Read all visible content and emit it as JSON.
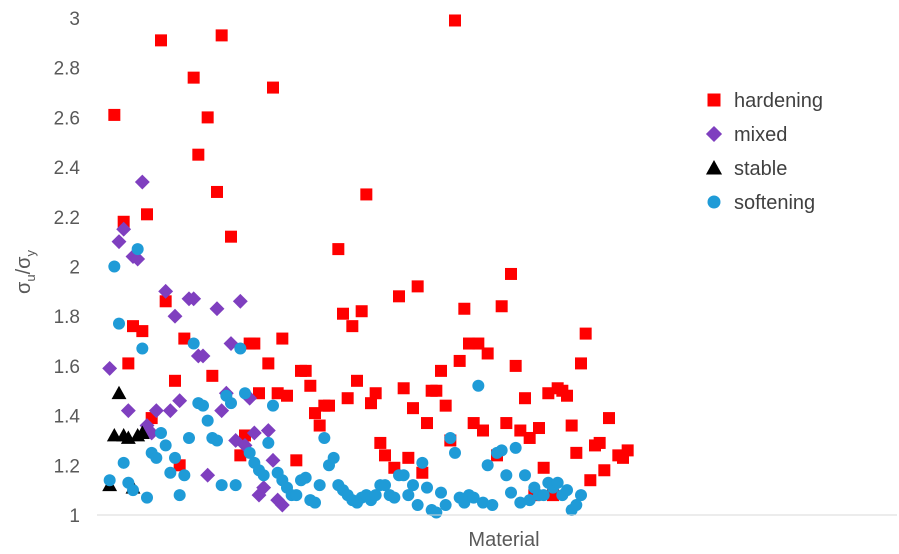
{
  "chart_data": {
    "type": "scatter",
    "title": "",
    "xlabel": "Material",
    "ylabel_main": "σ",
    "ylabel_num_sub": "u",
    "ylabel_slash": "/σ",
    "ylabel_den_sub": "y",
    "ylim": [
      1,
      3
    ],
    "xlim": [
      0,
      168
    ],
    "yticks": [
      "1",
      "1.2",
      "1.4",
      "1.6",
      "1.8",
      "2",
      "2.2",
      "2.4",
      "2.6",
      "2.8",
      "3"
    ],
    "grid": false,
    "legend_position": "top-right",
    "series": [
      {
        "name": "hardening",
        "marker": "square",
        "color": "#ff0000",
        "points": [
          [
            2,
            2.61
          ],
          [
            4,
            2.18
          ],
          [
            5,
            1.61
          ],
          [
            6,
            1.76
          ],
          [
            8,
            1.74
          ],
          [
            9,
            2.21
          ],
          [
            10,
            1.39
          ],
          [
            12,
            2.91
          ],
          [
            13,
            1.86
          ],
          [
            15,
            1.54
          ],
          [
            16,
            1.2
          ],
          [
            17,
            1.71
          ],
          [
            19,
            2.76
          ],
          [
            20,
            2.45
          ],
          [
            22,
            2.6
          ],
          [
            23,
            1.56
          ],
          [
            24,
            2.3
          ],
          [
            25,
            2.93
          ],
          [
            27,
            2.12
          ],
          [
            29,
            1.24
          ],
          [
            30,
            1.32
          ],
          [
            31,
            1.69
          ],
          [
            32,
            1.69
          ],
          [
            33,
            1.49
          ],
          [
            35,
            1.61
          ],
          [
            36,
            2.72
          ],
          [
            37,
            1.49
          ],
          [
            38,
            1.71
          ],
          [
            39,
            1.48
          ],
          [
            41,
            1.22
          ],
          [
            42,
            1.58
          ],
          [
            43,
            1.58
          ],
          [
            44,
            1.52
          ],
          [
            45,
            1.41
          ],
          [
            46,
            1.36
          ],
          [
            47,
            1.44
          ],
          [
            48,
            1.44
          ],
          [
            50,
            2.07
          ],
          [
            51,
            1.81
          ],
          [
            52,
            1.47
          ],
          [
            53,
            1.76
          ],
          [
            54,
            1.54
          ],
          [
            55,
            1.82
          ],
          [
            56,
            2.29
          ],
          [
            57,
            1.45
          ],
          [
            58,
            1.49
          ],
          [
            59,
            1.29
          ],
          [
            60,
            1.24
          ],
          [
            62,
            1.19
          ],
          [
            63,
            1.88
          ],
          [
            64,
            1.51
          ],
          [
            65,
            1.23
          ],
          [
            66,
            1.43
          ],
          [
            67,
            1.92
          ],
          [
            68,
            1.17
          ],
          [
            69,
            1.37
          ],
          [
            70,
            1.5
          ],
          [
            71,
            1.5
          ],
          [
            72,
            1.58
          ],
          [
            73,
            1.44
          ],
          [
            74,
            1.3
          ],
          [
            75,
            2.99
          ],
          [
            76,
            1.62
          ],
          [
            77,
            1.83
          ],
          [
            78,
            1.69
          ],
          [
            79,
            1.37
          ],
          [
            80,
            1.69
          ],
          [
            81,
            1.34
          ],
          [
            82,
            1.65
          ],
          [
            84,
            1.24
          ],
          [
            85,
            1.84
          ],
          [
            86,
            1.37
          ],
          [
            87,
            1.97
          ],
          [
            88,
            1.6
          ],
          [
            89,
            1.34
          ],
          [
            90,
            1.47
          ],
          [
            91,
            1.31
          ],
          [
            92,
            1.08
          ],
          [
            93,
            1.35
          ],
          [
            94,
            1.19
          ],
          [
            95,
            1.49
          ],
          [
            96,
            1.08
          ],
          [
            97,
            1.51
          ],
          [
            98,
            1.5
          ],
          [
            99,
            1.48
          ],
          [
            100,
            1.36
          ],
          [
            101,
            1.25
          ],
          [
            102,
            1.61
          ],
          [
            103,
            1.73
          ],
          [
            104,
            1.14
          ],
          [
            105,
            1.28
          ],
          [
            106,
            1.29
          ],
          [
            107,
            1.18
          ],
          [
            108,
            1.39
          ],
          [
            110,
            1.24
          ],
          [
            111,
            1.23
          ],
          [
            112,
            1.26
          ]
        ]
      },
      {
        "name": "mixed",
        "marker": "diamond",
        "color": "#7f3fbf",
        "points": [
          [
            1,
            1.59
          ],
          [
            3,
            2.1
          ],
          [
            4,
            2.15
          ],
          [
            5,
            1.42
          ],
          [
            6,
            2.04
          ],
          [
            7,
            2.03
          ],
          [
            8,
            2.34
          ],
          [
            9,
            1.36
          ],
          [
            10,
            1.33
          ],
          [
            11,
            1.42
          ],
          [
            13,
            1.9
          ],
          [
            14,
            1.42
          ],
          [
            15,
            1.8
          ],
          [
            16,
            1.46
          ],
          [
            18,
            1.87
          ],
          [
            19,
            1.87
          ],
          [
            20,
            1.64
          ],
          [
            21,
            1.64
          ],
          [
            22,
            1.16
          ],
          [
            24,
            1.83
          ],
          [
            25,
            1.42
          ],
          [
            26,
            1.49
          ],
          [
            27,
            1.69
          ],
          [
            28,
            1.3
          ],
          [
            29,
            1.86
          ],
          [
            30,
            1.28
          ],
          [
            31,
            1.47
          ],
          [
            32,
            1.33
          ],
          [
            33,
            1.08
          ],
          [
            34,
            1.11
          ],
          [
            35,
            1.34
          ],
          [
            36,
            1.22
          ],
          [
            37,
            1.06
          ],
          [
            38,
            1.04
          ]
        ]
      },
      {
        "name": "stable",
        "marker": "triangle",
        "color": "#000000",
        "points": [
          [
            1,
            1.12
          ],
          [
            2,
            1.32
          ],
          [
            3,
            1.49
          ],
          [
            4,
            1.32
          ],
          [
            5,
            1.31
          ],
          [
            6,
            1.11
          ],
          [
            7,
            1.32
          ],
          [
            8,
            1.33
          ]
        ]
      },
      {
        "name": "softening",
        "marker": "circle",
        "color": "#1f9bd7",
        "points": [
          [
            1,
            1.14
          ],
          [
            2,
            2.0
          ],
          [
            3,
            1.77
          ],
          [
            4,
            1.21
          ],
          [
            5,
            1.13
          ],
          [
            6,
            1.1
          ],
          [
            7,
            2.07
          ],
          [
            8,
            1.67
          ],
          [
            9,
            1.07
          ],
          [
            10,
            1.25
          ],
          [
            11,
            1.23
          ],
          [
            12,
            1.33
          ],
          [
            13,
            1.28
          ],
          [
            14,
            1.17
          ],
          [
            15,
            1.23
          ],
          [
            16,
            1.08
          ],
          [
            17,
            1.16
          ],
          [
            18,
            1.31
          ],
          [
            19,
            1.69
          ],
          [
            20,
            1.45
          ],
          [
            21,
            1.44
          ],
          [
            22,
            1.38
          ],
          [
            23,
            1.31
          ],
          [
            24,
            1.3
          ],
          [
            25,
            1.12
          ],
          [
            26,
            1.48
          ],
          [
            27,
            1.45
          ],
          [
            28,
            1.12
          ],
          [
            29,
            1.67
          ],
          [
            30,
            1.49
          ],
          [
            31,
            1.25
          ],
          [
            32,
            1.21
          ],
          [
            33,
            1.18
          ],
          [
            34,
            1.16
          ],
          [
            35,
            1.29
          ],
          [
            36,
            1.44
          ],
          [
            37,
            1.17
          ],
          [
            38,
            1.14
          ],
          [
            39,
            1.11
          ],
          [
            40,
            1.08
          ],
          [
            41,
            1.08
          ],
          [
            42,
            1.14
          ],
          [
            43,
            1.15
          ],
          [
            44,
            1.06
          ],
          [
            45,
            1.05
          ],
          [
            46,
            1.12
          ],
          [
            47,
            1.31
          ],
          [
            48,
            1.2
          ],
          [
            49,
            1.23
          ],
          [
            50,
            1.12
          ],
          [
            51,
            1.1
          ],
          [
            52,
            1.08
          ],
          [
            53,
            1.06
          ],
          [
            54,
            1.05
          ],
          [
            55,
            1.07
          ],
          [
            56,
            1.08
          ],
          [
            57,
            1.06
          ],
          [
            58,
            1.08
          ],
          [
            59,
            1.12
          ],
          [
            60,
            1.12
          ],
          [
            61,
            1.08
          ],
          [
            62,
            1.07
          ],
          [
            63,
            1.16
          ],
          [
            64,
            1.16
          ],
          [
            65,
            1.08
          ],
          [
            66,
            1.12
          ],
          [
            67,
            1.04
          ],
          [
            68,
            1.21
          ],
          [
            69,
            1.11
          ],
          [
            70,
            1.02
          ],
          [
            71,
            1.01
          ],
          [
            72,
            1.09
          ],
          [
            73,
            1.04
          ],
          [
            74,
            1.31
          ],
          [
            75,
            1.25
          ],
          [
            76,
            1.07
          ],
          [
            77,
            1.05
          ],
          [
            78,
            1.08
          ],
          [
            79,
            1.07
          ],
          [
            80,
            1.52
          ],
          [
            81,
            1.05
          ],
          [
            82,
            1.2
          ],
          [
            83,
            1.04
          ],
          [
            84,
            1.25
          ],
          [
            85,
            1.26
          ],
          [
            86,
            1.16
          ],
          [
            87,
            1.09
          ],
          [
            88,
            1.27
          ],
          [
            89,
            1.05
          ],
          [
            90,
            1.16
          ],
          [
            91,
            1.06
          ],
          [
            92,
            1.11
          ],
          [
            93,
            1.08
          ],
          [
            94,
            1.08
          ],
          [
            95,
            1.13
          ],
          [
            96,
            1.11
          ],
          [
            97,
            1.13
          ],
          [
            98,
            1.08
          ],
          [
            99,
            1.1
          ],
          [
            100,
            1.02
          ],
          [
            101,
            1.04
          ],
          [
            102,
            1.08
          ]
        ]
      }
    ]
  }
}
